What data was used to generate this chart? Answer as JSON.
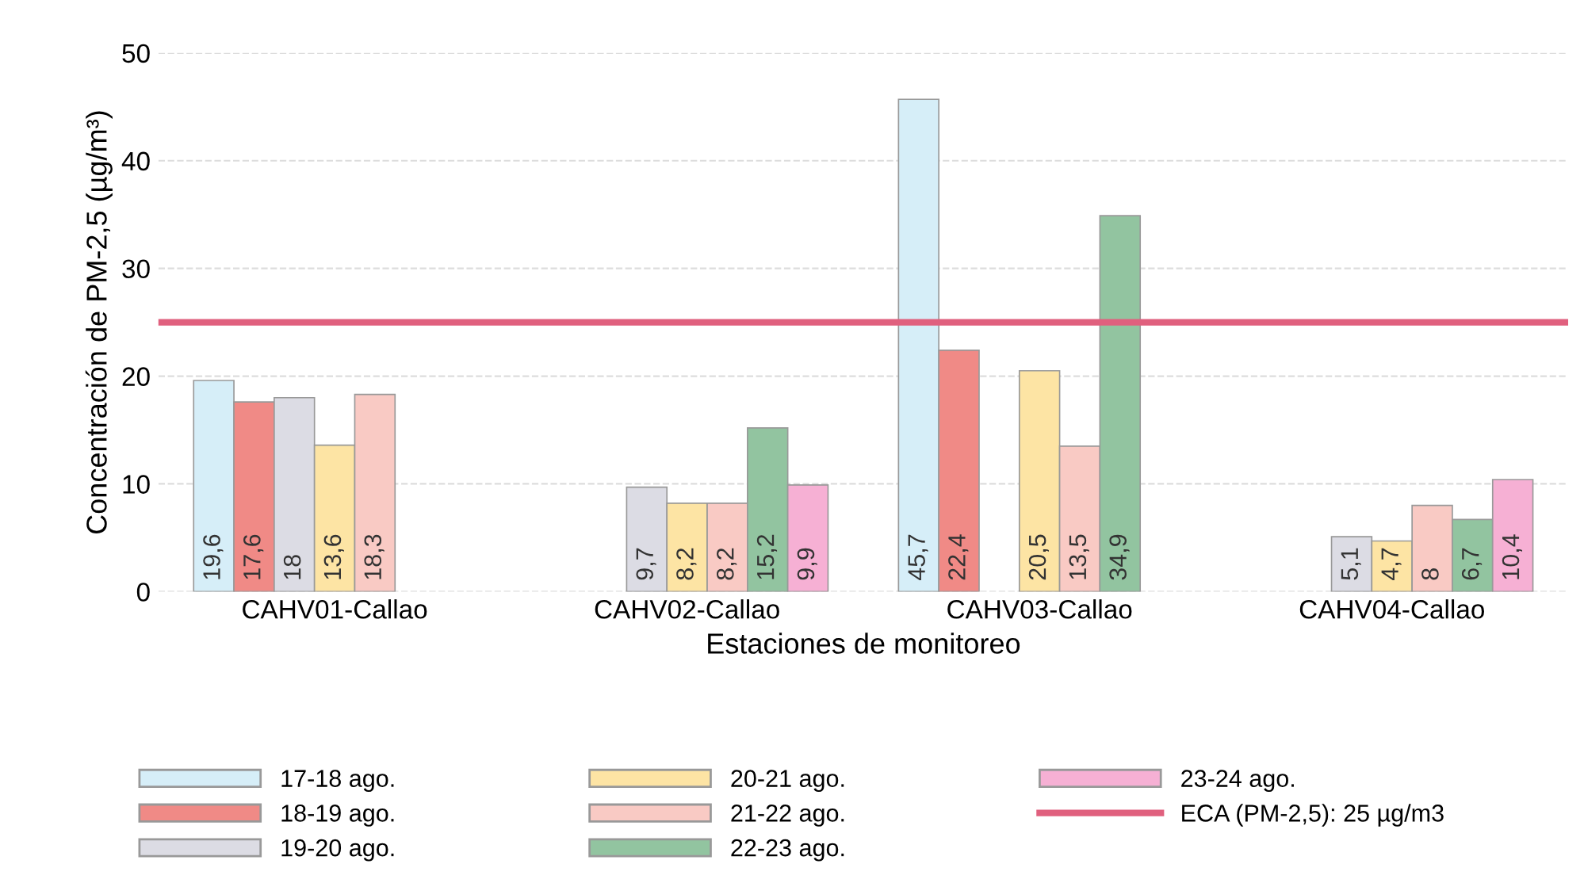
{
  "chart_data": {
    "type": "bar",
    "xlabel": "Estaciones de monitoreo",
    "ylabel": "Concentración de PM-2,5 (µg/m³)",
    "categories": [
      "CAHV01-Callao",
      "CAHV02-Callao",
      "CAHV03-Callao",
      "CAHV04-Callao"
    ],
    "series": [
      {
        "name": "17-18 ago.",
        "color": "#d6eef8",
        "values": [
          19.6,
          null,
          45.7,
          null
        ],
        "value_labels": [
          "19,6",
          null,
          "45,7",
          null
        ]
      },
      {
        "name": "18-19 ago.",
        "color": "#f08a86",
        "values": [
          17.6,
          null,
          22.4,
          null
        ],
        "value_labels": [
          "17,6",
          null,
          "22,4",
          null
        ]
      },
      {
        "name": "19-20 ago.",
        "color": "#dcdce4",
        "values": [
          18,
          9.7,
          null,
          5.1
        ],
        "value_labels": [
          "18",
          "9,7",
          null,
          "5,1"
        ]
      },
      {
        "name": "20-21 ago.",
        "color": "#fde4a4",
        "values": [
          13.6,
          8.2,
          20.5,
          4.7
        ],
        "value_labels": [
          "13,6",
          "8,2",
          "20,5",
          "4,7"
        ]
      },
      {
        "name": "21-22 ago.",
        "color": "#f9cac4",
        "values": [
          18.3,
          8.2,
          13.5,
          8
        ],
        "value_labels": [
          "18,3",
          "8,2",
          "13,5",
          "8"
        ]
      },
      {
        "name": "22-23 ago.",
        "color": "#92c4a0",
        "values": [
          null,
          15.2,
          34.9,
          6.7
        ],
        "value_labels": [
          null,
          "15,2",
          "34,9",
          "6,7"
        ]
      },
      {
        "name": "23-24 ago.",
        "color": "#f6b0d4",
        "values": [
          null,
          9.9,
          null,
          10.4
        ],
        "value_labels": [
          null,
          "9,9",
          null,
          "10,4"
        ]
      }
    ],
    "ylim": [
      0,
      50
    ],
    "yticks": [
      0,
      10,
      20,
      30,
      40,
      50
    ],
    "grid": "y",
    "legend": "bottom",
    "ref_lines": [
      {
        "axis": "y",
        "value": 25,
        "label": "ECA (PM-2,5): 25 µg/m3",
        "color": "#e0607e"
      }
    ]
  }
}
